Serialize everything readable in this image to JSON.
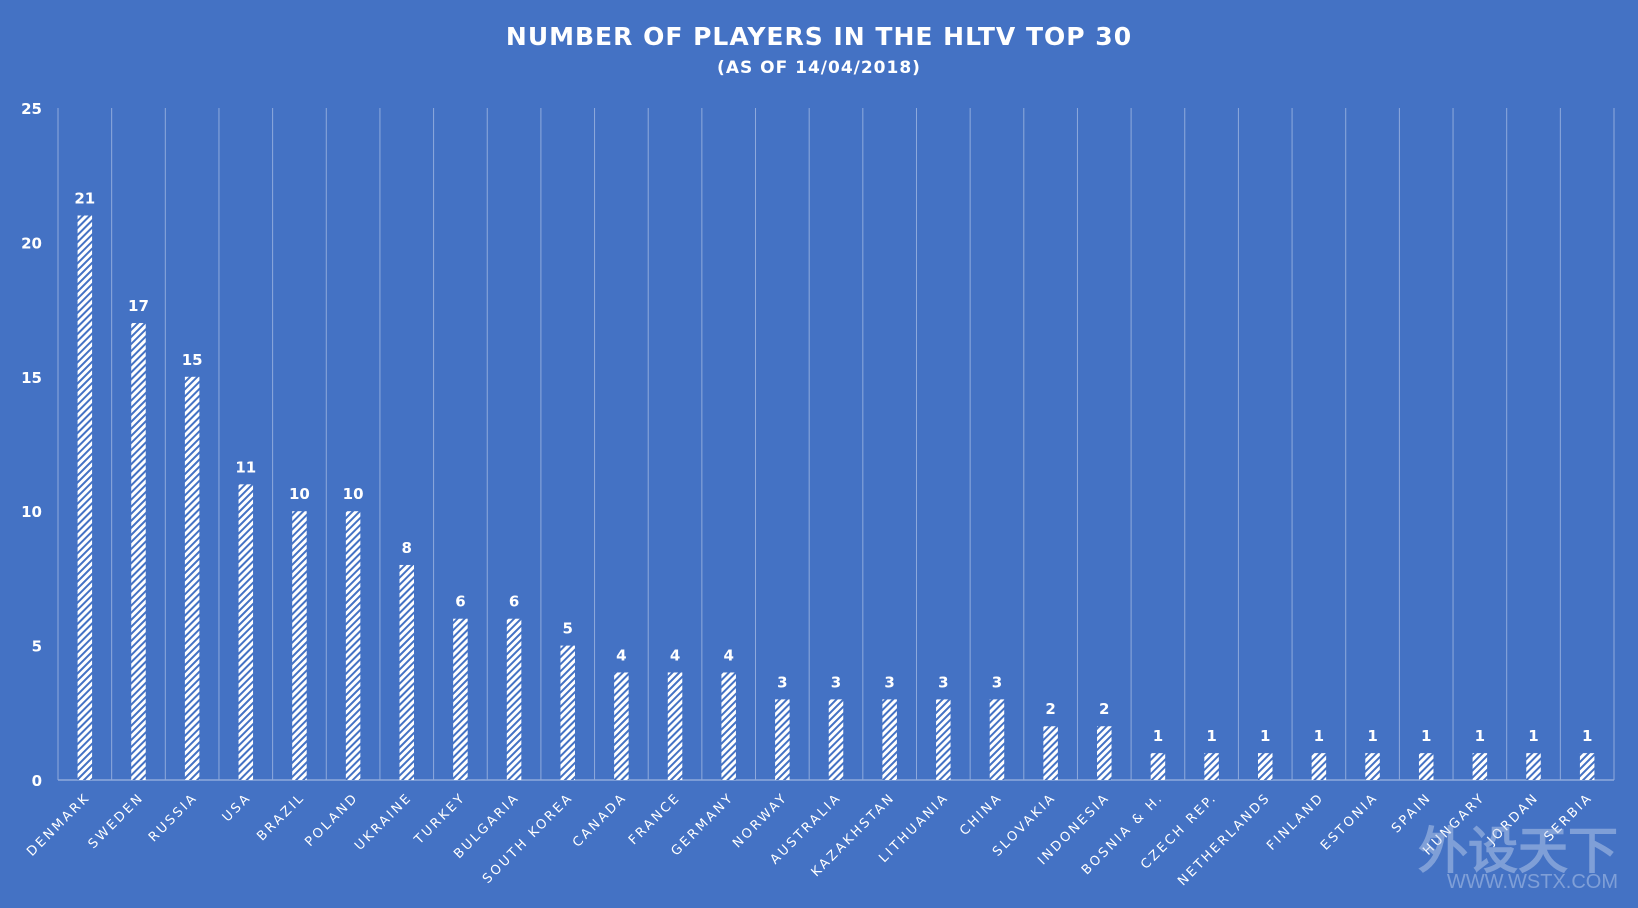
{
  "chart_data": {
    "type": "bar",
    "title": "NUMBER OF PLAYERS IN THE HLTV TOP 30",
    "subtitle": "(AS OF 14/04/2018)",
    "xlabel": "",
    "ylabel": "",
    "ylim": [
      0,
      25
    ],
    "yticks": [
      0,
      5,
      10,
      15,
      20,
      25
    ],
    "grid": "vertical",
    "categories": [
      "DENMARK",
      "SWEDEN",
      "RUSSIA",
      "USA",
      "BRAZIL",
      "POLAND",
      "UKRAINE",
      "TURKEY",
      "BULGARIA",
      "SOUTH KOREA",
      "CANADA",
      "FRANCE",
      "GERMANY",
      "NORWAY",
      "AUSTRALIA",
      "KAZAKHSTAN",
      "LITHUANIA",
      "CHINA",
      "SLOVAKIA",
      "INDONESIA",
      "BOSNIA & H.",
      "CZECH REP.",
      "NETHERLANDS",
      "FINLAND",
      "ESTONIA",
      "SPAIN",
      "HUNGARY",
      "JORDAN",
      "SERBIA"
    ],
    "values": [
      21,
      17,
      15,
      11,
      10,
      10,
      8,
      6,
      6,
      5,
      4,
      4,
      4,
      3,
      3,
      3,
      3,
      3,
      2,
      2,
      1,
      1,
      1,
      1,
      1,
      1,
      1,
      1,
      1
    ],
    "colors": {
      "background": "#4472C4",
      "bar": "#FFFFFF",
      "hatch": "#4472C4",
      "grid": "#8FAADC"
    }
  },
  "watermark": {
    "cn": "外设天下",
    "url": "WWW.WSTX.COM"
  }
}
